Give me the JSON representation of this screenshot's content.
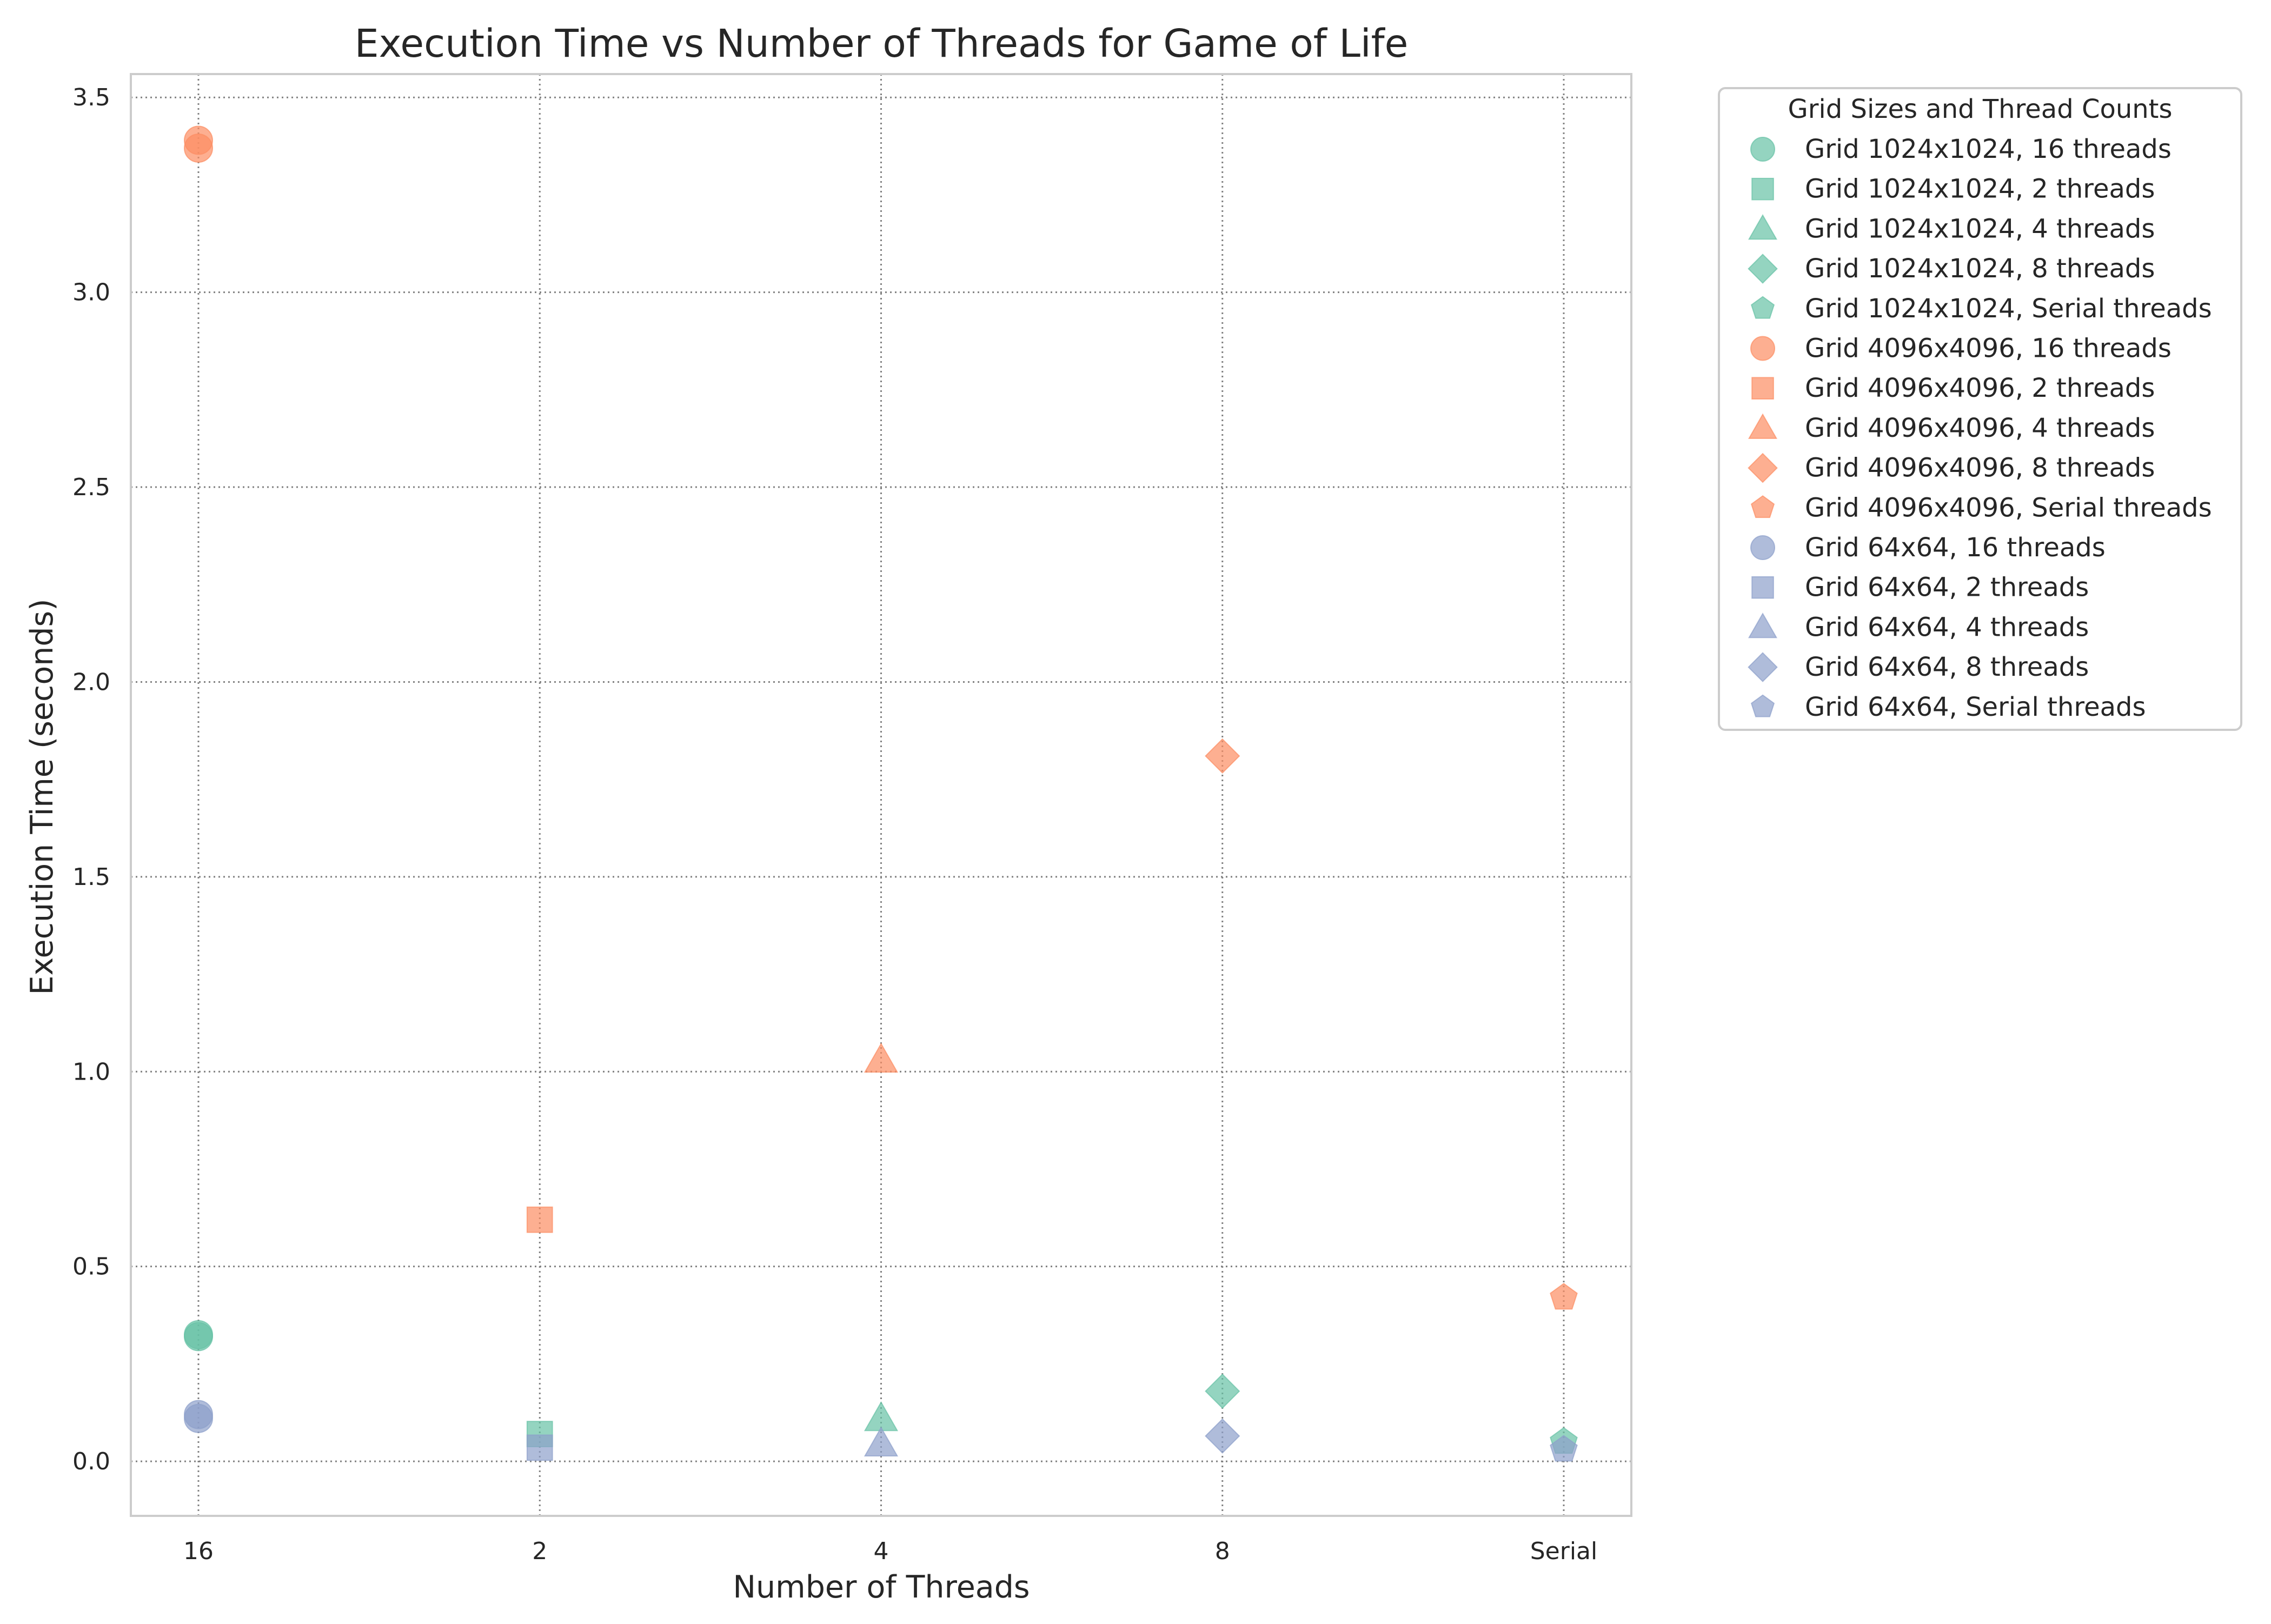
{
  "chart_data": {
    "type": "scatter",
    "title": "Execution Time vs Number of Threads for Game of Life",
    "xlabel": "Number of Threads",
    "ylabel": "Execution Time (seconds)",
    "categories": [
      "16",
      "2",
      "4",
      "8",
      "Serial"
    ],
    "ylim": [
      -0.14,
      3.56
    ],
    "yticks": [
      0.0,
      0.5,
      1.0,
      1.5,
      2.0,
      2.5,
      3.0,
      3.5
    ],
    "grid": true,
    "legend_position": "outside-right",
    "legend_title": "Grid Sizes and Thread Counts",
    "colors": {
      "grid_1024": "#66c2a5",
      "grid_4096": "#fc8d62",
      "grid_64": "#8da0cb",
      "gridline": "#808080",
      "axes_edge": "#cccccc"
    },
    "series": [
      {
        "name": "Grid 1024x1024, 16 threads",
        "grid": "1024",
        "marker": "circle",
        "points": [
          {
            "x": "16",
            "y": 0.32
          },
          {
            "x": "16",
            "y": 0.325
          }
        ]
      },
      {
        "name": "Grid 1024x1024, 2 threads",
        "grid": "1024",
        "marker": "square",
        "points": [
          {
            "x": "2",
            "y": 0.07
          }
        ]
      },
      {
        "name": "Grid 1024x1024, 4 threads",
        "grid": "1024",
        "marker": "triangle",
        "points": [
          {
            "x": "4",
            "y": 0.11
          }
        ]
      },
      {
        "name": "Grid 1024x1024, 8 threads",
        "grid": "1024",
        "marker": "diamond",
        "points": [
          {
            "x": "8",
            "y": 0.18
          }
        ]
      },
      {
        "name": "Grid 1024x1024, Serial threads",
        "grid": "1024",
        "marker": "pentagon",
        "points": [
          {
            "x": "Serial",
            "y": 0.05
          }
        ]
      },
      {
        "name": "Grid 4096x4096, 16 threads",
        "grid": "4096",
        "marker": "circle",
        "points": [
          {
            "x": "16",
            "y": 3.37
          },
          {
            "x": "16",
            "y": 3.39
          }
        ]
      },
      {
        "name": "Grid 4096x4096, 2 threads",
        "grid": "4096",
        "marker": "square",
        "points": [
          {
            "x": "2",
            "y": 0.62
          }
        ]
      },
      {
        "name": "Grid 4096x4096, 4 threads",
        "grid": "4096",
        "marker": "triangle",
        "points": [
          {
            "x": "4",
            "y": 1.03
          }
        ]
      },
      {
        "name": "Grid 4096x4096, 8 threads",
        "grid": "4096",
        "marker": "diamond",
        "points": [
          {
            "x": "8",
            "y": 1.81
          }
        ]
      },
      {
        "name": "Grid 4096x4096, Serial threads",
        "grid": "4096",
        "marker": "pentagon",
        "points": [
          {
            "x": "Serial",
            "y": 0.42
          }
        ]
      },
      {
        "name": "Grid 64x64, 16 threads",
        "grid": "64",
        "marker": "circle",
        "points": [
          {
            "x": "16",
            "y": 0.11
          },
          {
            "x": "16",
            "y": 0.12
          }
        ]
      },
      {
        "name": "Grid 64x64, 2 threads",
        "grid": "64",
        "marker": "square",
        "points": [
          {
            "x": "2",
            "y": 0.035
          }
        ]
      },
      {
        "name": "Grid 64x64, 4 threads",
        "grid": "64",
        "marker": "triangle",
        "points": [
          {
            "x": "4",
            "y": 0.045
          }
        ]
      },
      {
        "name": "Grid 64x64, 8 threads",
        "grid": "64",
        "marker": "diamond",
        "points": [
          {
            "x": "8",
            "y": 0.065
          }
        ]
      },
      {
        "name": "Grid 64x64, Serial threads",
        "grid": "64",
        "marker": "pentagon",
        "points": [
          {
            "x": "Serial",
            "y": 0.03
          }
        ]
      }
    ]
  }
}
